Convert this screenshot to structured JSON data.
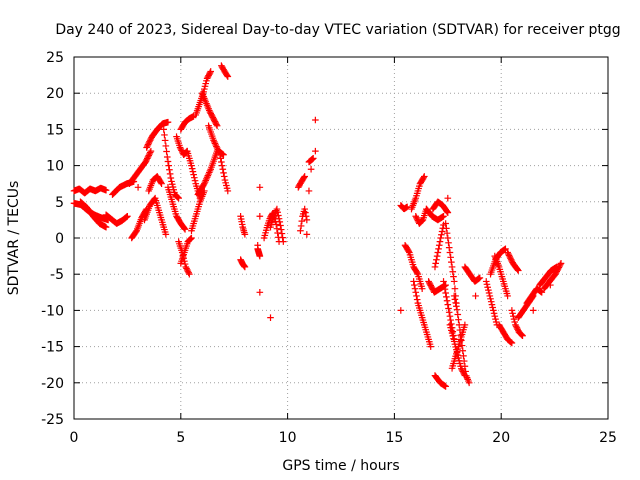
{
  "chart_data": {
    "type": "scatter",
    "title": "Day 240 of 2023, Sidereal Day-to-day VTEC variation (SDTVAR) for receiver ptgg",
    "xlabel": "GPS time / hours",
    "ylabel": "SDTVAR / TECUs",
    "xlim": [
      0,
      25
    ],
    "ylim": [
      -25,
      25
    ],
    "xticks": [
      0,
      5,
      10,
      15,
      20,
      25
    ],
    "yticks": [
      -25,
      -20,
      -15,
      -10,
      -5,
      0,
      5,
      10,
      15,
      20,
      25
    ],
    "xtick_labels": [
      "0",
      "5",
      "10",
      "15",
      "20",
      "25"
    ],
    "ytick_labels": [
      "-25",
      "-20",
      "-15",
      "-10",
      "-5",
      "0",
      "5",
      "10",
      "15",
      "20",
      "25"
    ],
    "grid": true,
    "marker": "+",
    "series_color": "#ff0000",
    "tracks": [
      {
        "x0": 0.0,
        "x1": 1.5,
        "y": [
          6.5,
          6.8,
          6.2,
          6.8,
          6.5,
          6.9,
          6.6
        ]
      },
      {
        "x0": 0.0,
        "x1": 1.6,
        "y": [
          4.8,
          4.6,
          3.8,
          3.2,
          2.8,
          2.5
        ]
      },
      {
        "x0": 0.3,
        "x1": 1.5,
        "y": [
          5.0,
          4.2,
          3.0,
          2.0,
          1.5
        ]
      },
      {
        "x0": 1.5,
        "x1": 2.5,
        "y": [
          3.2,
          2.6,
          2.0,
          2.4,
          3.0
        ]
      },
      {
        "x0": 1.8,
        "x1": 2.8,
        "y": [
          6.0,
          7.0,
          7.5,
          7.8
        ]
      },
      {
        "x0": 2.6,
        "x1": 3.6,
        "y": [
          7.5,
          8.5,
          9.5,
          10.5,
          12.0
        ]
      },
      {
        "x0": 2.7,
        "x1": 3.4,
        "y": [
          0.0,
          1.0,
          2.8,
          4.0
        ]
      },
      {
        "x0": 3.5,
        "x1": 4.1,
        "y": [
          6.5,
          8.0,
          8.5,
          7.5
        ]
      },
      {
        "x0": 3.3,
        "x1": 4.3,
        "y": [
          2.5,
          4.5,
          5.5,
          3.0,
          0.5
        ]
      },
      {
        "x0": 3.4,
        "x1": 4.4,
        "y": [
          12.5,
          14.0,
          15.0,
          15.8,
          16.0
        ]
      },
      {
        "x0": 4.2,
        "x1": 4.9,
        "y": [
          15.0,
          11.0,
          8.0,
          6.0,
          5.5
        ]
      },
      {
        "x0": 4.4,
        "x1": 5.2,
        "y": [
          7.0,
          5.0,
          3.0,
          2.0,
          1.2
        ]
      },
      {
        "x0": 4.9,
        "x1": 5.4,
        "y": [
          -0.5,
          -2.0,
          -4.0,
          -5.0
        ]
      },
      {
        "x0": 5.0,
        "x1": 5.5,
        "y": [
          -3.5,
          -2.0,
          -0.5,
          0.0
        ]
      },
      {
        "x0": 4.8,
        "x1": 5.3,
        "y": [
          14.0,
          12.5,
          11.5,
          12.0
        ]
      },
      {
        "x0": 5.0,
        "x1": 5.6,
        "y": [
          15.0,
          16.0,
          16.5,
          16.8
        ]
      },
      {
        "x0": 5.3,
        "x1": 5.9,
        "y": [
          12.0,
          10.0,
          7.5,
          5.5
        ]
      },
      {
        "x0": 5.5,
        "x1": 6.1,
        "y": [
          1.0,
          3.0,
          5.0,
          6.5
        ]
      },
      {
        "x0": 5.8,
        "x1": 6.7,
        "y": [
          6.0,
          7.5,
          9.5,
          12.0
        ]
      },
      {
        "x0": 5.7,
        "x1": 6.4,
        "y": [
          17.0,
          18.5,
          20.0,
          22.0,
          23.0
        ]
      },
      {
        "x0": 6.0,
        "x1": 6.7,
        "y": [
          20.0,
          17.5,
          15.5
        ]
      },
      {
        "x0": 6.3,
        "x1": 7.0,
        "y": [
          15.5,
          13.5,
          12.0,
          11.5
        ]
      },
      {
        "x0": 6.8,
        "x1": 7.2,
        "y": [
          12.0,
          10.0,
          8.0,
          6.5
        ]
      },
      {
        "x0": 6.9,
        "x1": 7.2,
        "y": [
          23.8,
          23.0,
          22.3
        ]
      },
      {
        "x0": 7.8,
        "x1": 8.0,
        "y": [
          3.0,
          1.5,
          0.5
        ]
      },
      {
        "x0": 7.8,
        "x1": 8.0,
        "y": [
          -3.0,
          -3.6,
          -4.0
        ]
      },
      {
        "x0": 8.6,
        "x1": 8.7,
        "y": [
          -1.5,
          -2.5
        ]
      },
      {
        "x0": 8.9,
        "x1": 9.6,
        "y": [
          0.0,
          1.5,
          2.8,
          3.5,
          2.0,
          -0.5
        ]
      },
      {
        "x0": 9.2,
        "x1": 9.8,
        "y": [
          1.5,
          3.0,
          4.0,
          2.0,
          -0.5
        ]
      },
      {
        "x0": 10.6,
        "x1": 10.9,
        "y": [
          1.0,
          3.0,
          4.0,
          2.5
        ]
      },
      {
        "x0": 10.5,
        "x1": 10.8,
        "y": [
          7.0,
          7.8,
          8.5
        ]
      },
      {
        "x0": 11.0,
        "x1": 11.2,
        "y": [
          10.5,
          11.0
        ]
      },
      {
        "x0": 15.3,
        "x1": 15.6,
        "y": [
          4.5,
          4.0,
          4.3
        ]
      },
      {
        "x0": 15.5,
        "x1": 16.3,
        "y": [
          -1.0,
          -2.0,
          -4.0,
          -5.0,
          -7.0
        ]
      },
      {
        "x0": 15.8,
        "x1": 16.4,
        "y": [
          4.0,
          5.5,
          7.5,
          8.5
        ]
      },
      {
        "x0": 16.0,
        "x1": 16.5,
        "y": [
          3.0,
          2.0,
          2.5,
          4.0
        ]
      },
      {
        "x0": 15.9,
        "x1": 16.7,
        "y": [
          -6.0,
          -9.0,
          -11.0,
          -13.0,
          -15.0
        ]
      },
      {
        "x0": 16.5,
        "x1": 17.3,
        "y": [
          4.0,
          3.0,
          2.5,
          3.0
        ]
      },
      {
        "x0": 16.8,
        "x1": 17.5,
        "y": [
          4.0,
          5.0,
          4.5,
          3.5
        ]
      },
      {
        "x0": 16.6,
        "x1": 17.4,
        "y": [
          -6.0,
          -7.5,
          -7.0,
          -6.5
        ]
      },
      {
        "x0": 16.9,
        "x1": 17.3,
        "y": [
          -4.0,
          -2.0,
          0.0,
          1.8
        ]
      },
      {
        "x0": 17.3,
        "x1": 17.8,
        "y": [
          -6.0,
          -8.0,
          -10.0,
          -12.0,
          -14.0
        ]
      },
      {
        "x0": 17.4,
        "x1": 17.9,
        "y": [
          2.0,
          0.0,
          -2.0,
          -4.0,
          -6.0,
          -9.0
        ]
      },
      {
        "x0": 17.6,
        "x1": 18.3,
        "y": [
          -12.0,
          -14.0,
          -16.0,
          -18.0,
          -19.0
        ]
      },
      {
        "x0": 17.8,
        "x1": 18.5,
        "y": [
          -8.0,
          -10.0,
          -13.0,
          -16.0,
          -19.0,
          -20.0
        ]
      },
      {
        "x0": 16.9,
        "x1": 17.4,
        "y": [
          -19.0,
          -20.0,
          -20.5
        ]
      },
      {
        "x0": 17.7,
        "x1": 18.3,
        "y": [
          -18.0,
          -16.0,
          -14.0,
          -12.0
        ]
      },
      {
        "x0": 18.3,
        "x1": 19.0,
        "y": [
          -4.0,
          -5.0,
          -6.0,
          -5.5
        ]
      },
      {
        "x0": 19.3,
        "x1": 19.8,
        "y": [
          -6.0,
          -8.0,
          -10.0,
          -12.0
        ]
      },
      {
        "x0": 19.5,
        "x1": 20.2,
        "y": [
          -5.0,
          -3.0,
          -2.0,
          -1.5
        ]
      },
      {
        "x0": 19.7,
        "x1": 20.3,
        "y": [
          -2.5,
          -4.0,
          -6.0,
          -8.0
        ]
      },
      {
        "x0": 19.9,
        "x1": 20.5,
        "y": [
          -12.0,
          -13.0,
          -14.0,
          -14.5
        ]
      },
      {
        "x0": 20.3,
        "x1": 20.8,
        "y": [
          -2.0,
          -3.5,
          -4.5
        ]
      },
      {
        "x0": 20.5,
        "x1": 21.0,
        "y": [
          -10.0,
          -12.0,
          -13.0,
          -13.5
        ]
      },
      {
        "x0": 20.8,
        "x1": 21.5,
        "y": [
          -11.0,
          -10.0,
          -9.0,
          -8.0
        ]
      },
      {
        "x0": 21.2,
        "x1": 21.9,
        "y": [
          -9.0,
          -8.0,
          -7.0,
          -7.5
        ]
      },
      {
        "x0": 21.8,
        "x1": 22.6,
        "y": [
          -6.5,
          -5.5,
          -4.5,
          -4.0
        ]
      },
      {
        "x0": 22.0,
        "x1": 22.8,
        "y": [
          -7.0,
          -6.0,
          -5.0,
          -3.5
        ]
      }
    ],
    "points": [
      {
        "x": 3.0,
        "y": 7.0
      },
      {
        "x": 8.7,
        "y": 7.0
      },
      {
        "x": 8.7,
        "y": 3.0
      },
      {
        "x": 8.7,
        "y": -7.5
      },
      {
        "x": 9.2,
        "y": -11.0
      },
      {
        "x": 8.6,
        "y": -1.0
      },
      {
        "x": 11.1,
        "y": 9.5
      },
      {
        "x": 11.3,
        "y": 12.0
      },
      {
        "x": 11.3,
        "y": 16.3
      },
      {
        "x": 11.0,
        "y": 6.5
      },
      {
        "x": 10.9,
        "y": 0.5
      },
      {
        "x": 15.3,
        "y": -10.0
      },
      {
        "x": 17.5,
        "y": 5.5
      },
      {
        "x": 18.8,
        "y": -8.0
      },
      {
        "x": 21.5,
        "y": -10.0
      },
      {
        "x": 22.3,
        "y": -6.5
      }
    ]
  }
}
